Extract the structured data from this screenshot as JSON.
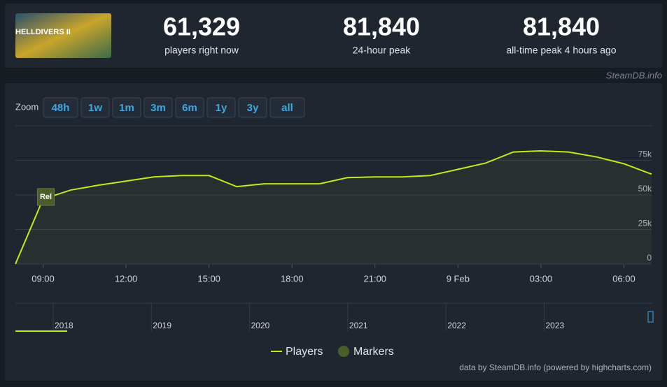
{
  "header": {
    "stats": [
      {
        "number": "61,329",
        "label": "players right now"
      },
      {
        "number": "81,840",
        "label": "24-hour peak"
      },
      {
        "number": "81,840",
        "label": "all-time peak 4 hours ago"
      }
    ],
    "watermark": "SteamDB.info"
  },
  "zoom": {
    "label": "Zoom",
    "buttons": [
      "48h",
      "1w",
      "1m",
      "3m",
      "6m",
      "1y",
      "3y",
      "all"
    ]
  },
  "chart_data": {
    "type": "line",
    "categories": [
      null,
      "09:00",
      null,
      null,
      "12:00",
      null,
      null,
      "15:00",
      null,
      null,
      "18:00",
      null,
      null,
      "21:00",
      null,
      null,
      "9 Feb",
      null,
      null,
      "03:00",
      null,
      null,
      "06:00",
      null
    ],
    "series": [
      {
        "name": "Players",
        "color": "#beee11",
        "values": [
          0,
          47000,
          53500,
          57000,
          60000,
          63000,
          64000,
          64000,
          56000,
          58000,
          58000,
          58000,
          62500,
          63000,
          63000,
          64000,
          68500,
          73000,
          81000,
          81840,
          81000,
          77500,
          72500,
          65000
        ]
      }
    ],
    "markers": {
      "name": "Markers",
      "color": "#4b5e2a",
      "items": [
        {
          "label": "Rel",
          "index": 1
        }
      ]
    },
    "ylim": [
      0,
      100000
    ],
    "yticks": [
      0,
      {
        "value": 25000,
        "label": "25k"
      },
      {
        "value": 50000,
        "label": "50k"
      },
      {
        "value": 75000,
        "label": "75k"
      }
    ],
    "grid": true,
    "navigator_labels": [
      "2018",
      "2019",
      "2020",
      "2021",
      "2022",
      "2023"
    ],
    "credit": "data by SteamDB.info (powered by highcharts.com)"
  }
}
